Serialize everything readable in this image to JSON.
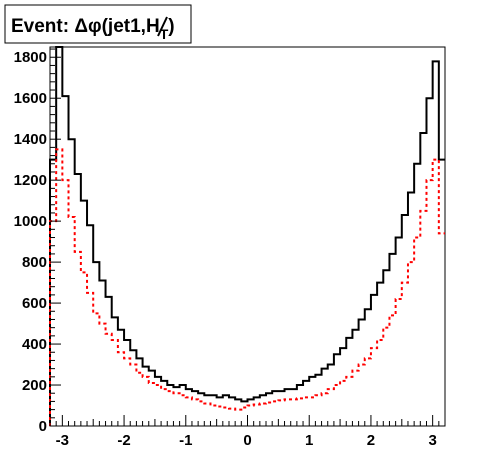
{
  "chart_data": {
    "type": "histogram",
    "title": {
      "prefix": "Event: ",
      "symbol": "Δφ",
      "inner": "(jet1,",
      "met_symbol": "H",
      "subscript": "T",
      "suffix": ")"
    },
    "xlim": [
      -3.2,
      3.2
    ],
    "ylim": [
      0,
      1850
    ],
    "x_ticks": [
      -3,
      -2,
      -1,
      0,
      1,
      2,
      3
    ],
    "x_tick_labels": [
      "-3",
      "-2",
      "-1",
      "0",
      "1",
      "2",
      "3"
    ],
    "y_ticks": [
      0,
      200,
      400,
      600,
      800,
      1000,
      1200,
      1400,
      1600,
      1800
    ],
    "y_tick_labels": [
      "0",
      "200",
      "400",
      "600",
      "800",
      "1000",
      "1200",
      "1400",
      "1600",
      "1800"
    ],
    "bin_edges": [
      -3.2,
      -3.1,
      -3.0,
      -2.9,
      -2.8,
      -2.7,
      -2.6,
      -2.5,
      -2.4,
      -2.3,
      -2.2,
      -2.1,
      -2.0,
      -1.9,
      -1.8,
      -1.7,
      -1.6,
      -1.5,
      -1.4,
      -1.3,
      -1.2,
      -1.1,
      -1.0,
      -0.9,
      -0.8,
      -0.7,
      -0.6,
      -0.5,
      -0.4,
      -0.3,
      -0.2,
      -0.1,
      0.0,
      0.1,
      0.2,
      0.3,
      0.4,
      0.5,
      0.6,
      0.7,
      0.8,
      0.9,
      1.0,
      1.1,
      1.2,
      1.3,
      1.4,
      1.5,
      1.6,
      1.7,
      1.8,
      1.9,
      2.0,
      2.1,
      2.2,
      2.3,
      2.4,
      2.5,
      2.6,
      2.7,
      2.8,
      2.9,
      3.0,
      3.1,
      3.2
    ],
    "series": [
      {
        "color": "#000000",
        "line_style": "solid",
        "values": [
          1300,
          1850,
          1610,
          1400,
          1230,
          1100,
          980,
          800,
          710,
          630,
          530,
          470,
          420,
          370,
          330,
          290,
          270,
          240,
          220,
          200,
          190,
          200,
          180,
          170,
          160,
          150,
          150,
          140,
          150,
          140,
          130,
          120,
          130,
          140,
          150,
          160,
          170,
          170,
          180,
          180,
          200,
          220,
          240,
          250,
          280,
          300,
          350,
          380,
          430,
          470,
          520,
          570,
          640,
          700,
          760,
          840,
          920,
          1030,
          1140,
          1280,
          1430,
          1600,
          1780,
          1300
        ]
      },
      {
        "color": "#ff0000",
        "line_style": "dashed",
        "values": [
          1000,
          1350,
          1200,
          1020,
          850,
          750,
          650,
          550,
          500,
          450,
          420,
          360,
          330,
          300,
          260,
          240,
          210,
          200,
          180,
          170,
          160,
          150,
          140,
          130,
          120,
          110,
          100,
          95,
          90,
          85,
          80,
          90,
          100,
          105,
          110,
          115,
          120,
          125,
          130,
          130,
          135,
          140,
          140,
          150,
          160,
          180,
          200,
          220,
          240,
          270,
          300,
          330,
          380,
          420,
          480,
          540,
          620,
          700,
          800,
          920,
          1050,
          1200,
          1300,
          940
        ]
      }
    ],
    "grid": false,
    "legend": "none"
  }
}
